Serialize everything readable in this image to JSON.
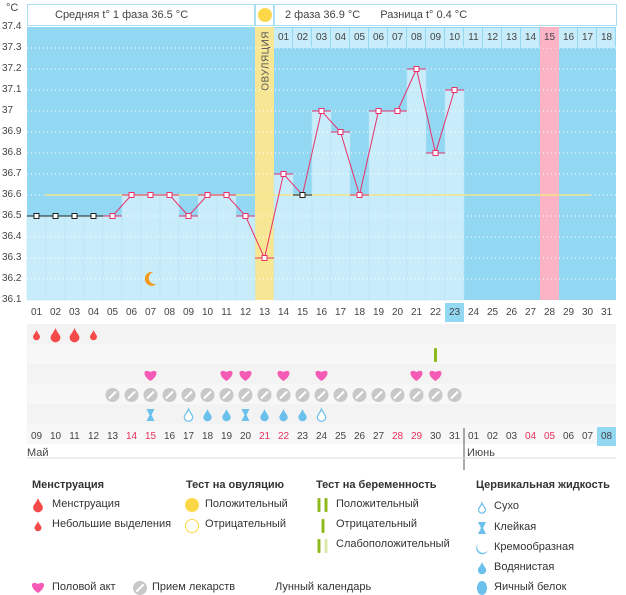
{
  "header": {
    "unit": "°C",
    "phase1_label": "Средняя t° 1 фаза 36.5 °C",
    "phase2_label": "2 фаза 36.9 °C",
    "diff_label": "Разница t° 0.4 °C",
    "ovulation_label": "ОВУЛЯЦИЯ"
  },
  "chart_data": {
    "type": "line",
    "ylim": [
      36.1,
      37.4
    ],
    "yticks": [
      "37.4",
      "37.3",
      "37.2",
      "37.1",
      "37",
      "36.9",
      "36.8",
      "36.7",
      "36.6",
      "36.5",
      "36.4",
      "36.3",
      "36.2",
      "36.1"
    ],
    "x": [
      "01",
      "02",
      "03",
      "04",
      "05",
      "06",
      "07",
      "08",
      "09",
      "10",
      "11",
      "12",
      "13",
      "14",
      "15",
      "16",
      "17",
      "18",
      "19",
      "20",
      "21",
      "22",
      "23",
      "24",
      "25",
      "26",
      "27",
      "28",
      "29",
      "30",
      "31"
    ],
    "temperatures": [
      36.5,
      36.5,
      36.5,
      36.5,
      36.5,
      36.6,
      36.6,
      36.6,
      36.5,
      36.6,
      36.6,
      36.5,
      36.3,
      36.7,
      36.6,
      37.0,
      36.9,
      36.6,
      37.0,
      37.0,
      37.2,
      36.8,
      37.1
    ],
    "cover_line": 36.6,
    "ovulation_day": 13,
    "today": 23,
    "highlight_day": 28,
    "phase2_days": [
      "01",
      "02",
      "03",
      "04",
      "05",
      "06",
      "07",
      "08",
      "09",
      "10",
      "11",
      "12",
      "13",
      "14",
      "15",
      "16",
      "17",
      "18"
    ],
    "moon_day": 7
  },
  "rows": {
    "menstruation": {
      "1": "small",
      "2": "big",
      "3": "big",
      "4": "small"
    },
    "pregnancy_test": {
      "22": "negative"
    },
    "intercourse": [
      7,
      11,
      12,
      14,
      16,
      21,
      22
    ],
    "medication": [
      5,
      6,
      7,
      8,
      9,
      10,
      11,
      12,
      13,
      14,
      15,
      16,
      17,
      18,
      19,
      20,
      21,
      22,
      23
    ],
    "fluid": {
      "7": "sticky",
      "9": "dry",
      "10": "watery",
      "11": "watery",
      "12": "sticky",
      "13": "watery",
      "14": "watery",
      "15": "watery",
      "16": "dry"
    }
  },
  "dates": [
    "09",
    "10",
    "11",
    "12",
    "13",
    "14",
    "15",
    "16",
    "17",
    "18",
    "19",
    "20",
    "21",
    "22",
    "23",
    "24",
    "25",
    "26",
    "27",
    "28",
    "29",
    "30",
    "31",
    "01",
    "02",
    "03",
    "04",
    "05",
    "06",
    "07",
    "08"
  ],
  "weekend_dates": [
    5,
    6,
    12,
    13,
    19,
    20,
    26,
    27
  ],
  "months": [
    "Май",
    "Июнь"
  ],
  "legend": {
    "menstruation": {
      "title": "Менструация",
      "items": [
        "Менструация",
        "Небольшие выделения"
      ]
    },
    "ovulation_test": {
      "title": "Тест на овуляцию",
      "items": [
        "Положительный",
        "Отрицательный"
      ]
    },
    "pregnancy_test": {
      "title": "Тест на беременность",
      "items": [
        "Положительный",
        "Отрицательный",
        "Слабоположительный"
      ]
    },
    "fluid": {
      "title": "Цервикальная жидкость",
      "items": [
        "Сухо",
        "Клейкая",
        "Кремообразная",
        "Водянистая",
        "Яичный белок"
      ]
    },
    "bottom": [
      "Половой акт",
      "Прием лекарств",
      "Лунный календарь"
    ]
  },
  "colors": {
    "bg": "#93d8f2",
    "bar": "#c9ecfa",
    "line": "#e8306a",
    "ovulation": "#f7e795",
    "highlight": "#fbb3c6",
    "today": "#93d8f2",
    "menstruation": "#f44a4a",
    "heart": "#f55bb5",
    "pill": "#c8c8c8",
    "fluid": "#6cc0ec",
    "test": "#8fba1c",
    "weekend": "#e8305a",
    "moon": "#f39a1d",
    "sun": "#fcd849"
  }
}
